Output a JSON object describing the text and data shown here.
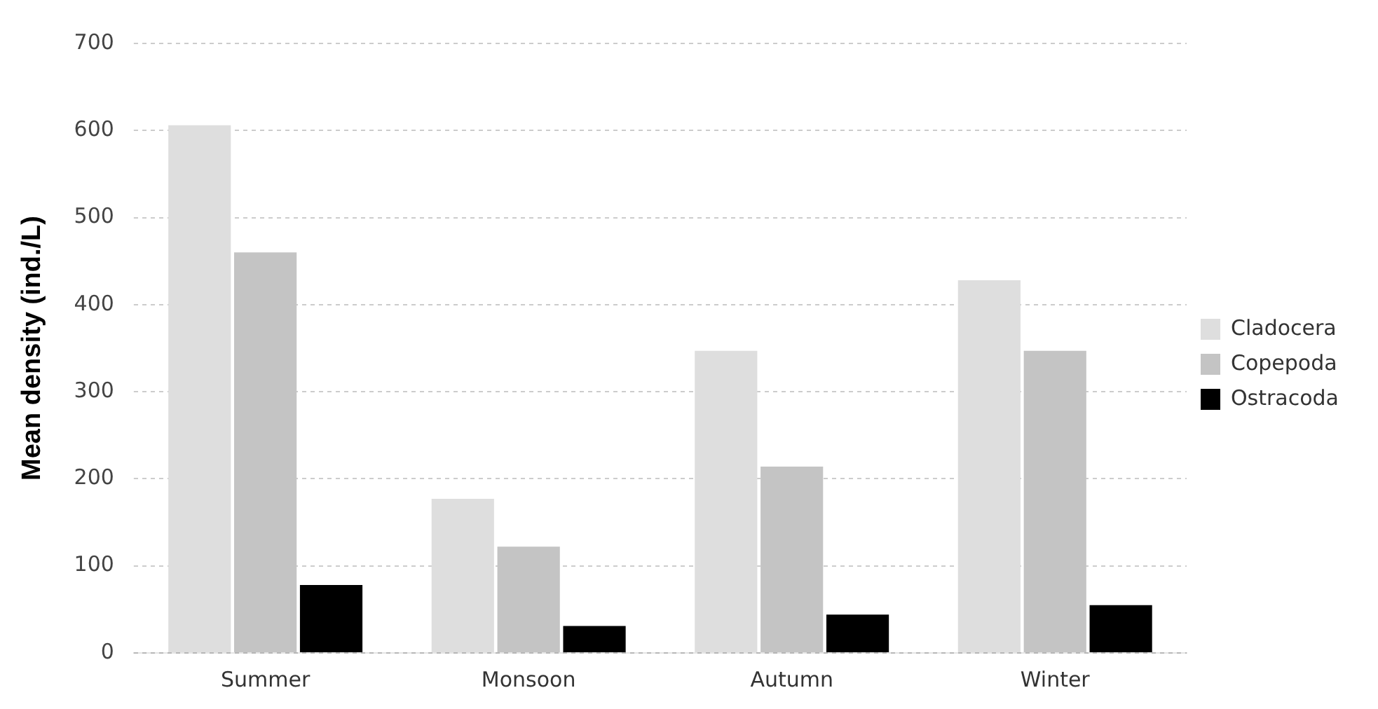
{
  "chart_data": {
    "type": "bar",
    "ylabel": "Mean density (ind./L)",
    "categories": [
      "Summer",
      "Monsoon",
      "Autumn",
      "Winter"
    ],
    "series": [
      {
        "name": "Cladocera",
        "color": "#dedede",
        "values": [
          606,
          177,
          347,
          428
        ]
      },
      {
        "name": "Copepoda",
        "color": "#c4c4c4",
        "values": [
          460,
          122,
          214,
          347
        ]
      },
      {
        "name": "Ostracoda",
        "color": "#000000",
        "values": [
          78,
          31,
          44,
          55
        ]
      }
    ],
    "ylim": [
      0,
      700
    ],
    "yticks": [
      0,
      100,
      200,
      300,
      400,
      500,
      600,
      700
    ],
    "grid": "y",
    "legend": "right"
  }
}
